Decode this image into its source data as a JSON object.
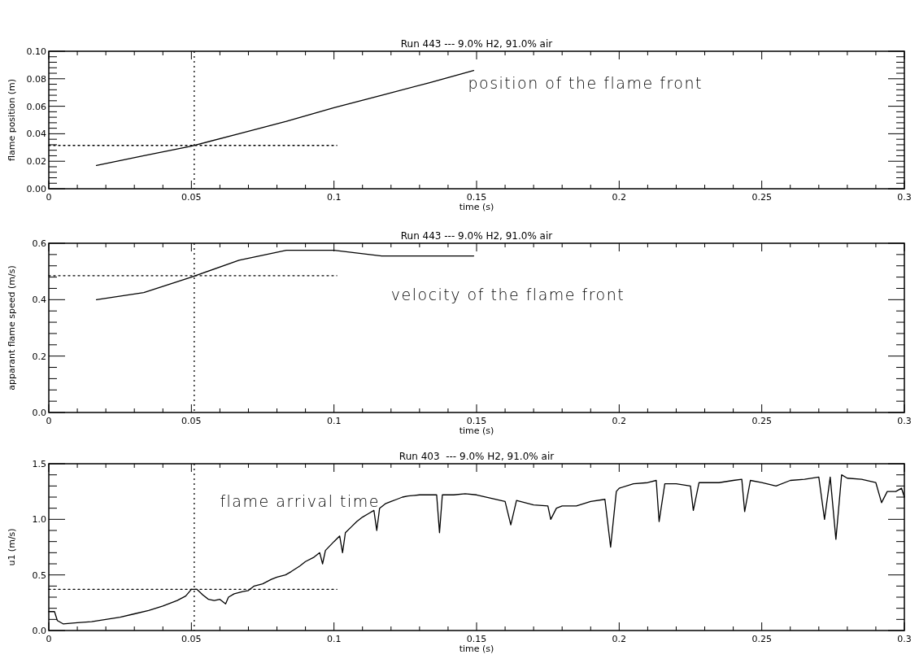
{
  "chart_data": [
    {
      "type": "line",
      "title": "Run 443 --- 9.0% H2, 91.0% air",
      "xlabel": "time (s)",
      "ylabel": "flame position (m)",
      "xlim": [
        0,
        0.3
      ],
      "xticks": [
        0,
        {
          "value": 0.01,
          "label": null
        },
        {
          "value": 0.02,
          "label": null
        },
        {
          "value": 0.03,
          "label": null
        },
        {
          "value": 0.04,
          "label": null
        },
        0.05,
        {
          "value": 0.06,
          "label": null
        },
        {
          "value": 0.07,
          "label": null
        },
        {
          "value": 0.08,
          "label": null
        },
        {
          "value": 0.09,
          "label": null
        },
        0.1,
        {
          "value": 0.11,
          "label": null
        },
        {
          "value": 0.12,
          "label": null
        },
        {
          "value": 0.13,
          "label": null
        },
        {
          "value": 0.14,
          "label": null
        },
        0.15,
        {
          "value": 0.16,
          "label": null
        },
        {
          "value": 0.17,
          "label": null
        },
        {
          "value": 0.18,
          "label": null
        },
        {
          "value": 0.19,
          "label": null
        },
        0.2,
        {
          "value": 0.21,
          "label": null
        },
        {
          "value": 0.22,
          "label": null
        },
        {
          "value": 0.23,
          "label": null
        },
        {
          "value": 0.24,
          "label": null
        },
        0.25,
        {
          "value": 0.26,
          "label": null
        },
        {
          "value": 0.27,
          "label": null
        },
        {
          "value": 0.28,
          "label": null
        },
        {
          "value": 0.29,
          "label": null
        },
        0.3
      ],
      "ylim": [
        0,
        0.1
      ],
      "yticks": [
        {
          "value": 0,
          "label": "0.00"
        },
        {
          "value": 0.004,
          "label": null
        },
        {
          "value": 0.008,
          "label": null
        },
        {
          "value": 0.012,
          "label": null
        },
        {
          "value": 0.016,
          "label": null
        },
        {
          "value": 0.02,
          "label": "0.02"
        },
        {
          "value": 0.024,
          "label": null
        },
        {
          "value": 0.028,
          "label": null
        },
        {
          "value": 0.032,
          "label": null
        },
        {
          "value": 0.036,
          "label": null
        },
        {
          "value": 0.04,
          "label": "0.04"
        },
        {
          "value": 0.044,
          "label": null
        },
        {
          "value": 0.048,
          "label": null
        },
        {
          "value": 0.052,
          "label": null
        },
        {
          "value": 0.056,
          "label": null
        },
        {
          "value": 0.06,
          "label": "0.06"
        },
        {
          "value": 0.064,
          "label": null
        },
        {
          "value": 0.068,
          "label": null
        },
        {
          "value": 0.072,
          "label": null
        },
        {
          "value": 0.076,
          "label": null
        },
        {
          "value": 0.08,
          "label": "0.08"
        },
        {
          "value": 0.084,
          "label": null
        },
        {
          "value": 0.088,
          "label": null
        },
        {
          "value": 0.092,
          "label": null
        },
        {
          "value": 0.096,
          "label": null
        },
        {
          "value": 0.1,
          "label": "0.10"
        }
      ],
      "grid": false,
      "marker": "none",
      "series": [
        {
          "color": "#000000",
          "line_style": "solid",
          "x": [
            0.0167,
            0.0333,
            0.05,
            0.0667,
            0.0833,
            0.1,
            0.1167,
            0.1333,
            0.149
          ],
          "values": [
            0.017,
            0.024,
            0.031,
            0.04,
            0.049,
            0.059,
            0.068,
            0.077,
            0.086
          ]
        },
        {
          "color": "#000000",
          "line_style": "dotted",
          "x": [
            0,
            0.101
          ],
          "values": [
            0.0315,
            0.0315
          ]
        }
      ],
      "ref_lines": [
        {
          "axis": "x",
          "value": 0.051,
          "line_style": "dotted",
          "color": "#000000"
        }
      ],
      "annotations": [
        "position of the flame front"
      ]
    },
    {
      "type": "line",
      "title": "Run 443 --- 9.0% H2, 91.0% air",
      "xlabel": "time (s)",
      "ylabel": "apparant flame speed (m/s)",
      "xlim": [
        0,
        0.3
      ],
      "xticks": [
        0,
        {
          "value": 0.01,
          "label": null
        },
        {
          "value": 0.02,
          "label": null
        },
        {
          "value": 0.03,
          "label": null
        },
        {
          "value": 0.04,
          "label": null
        },
        0.05,
        {
          "value": 0.06,
          "label": null
        },
        {
          "value": 0.07,
          "label": null
        },
        {
          "value": 0.08,
          "label": null
        },
        {
          "value": 0.09,
          "label": null
        },
        0.1,
        {
          "value": 0.11,
          "label": null
        },
        {
          "value": 0.12,
          "label": null
        },
        {
          "value": 0.13,
          "label": null
        },
        {
          "value": 0.14,
          "label": null
        },
        0.15,
        {
          "value": 0.16,
          "label": null
        },
        {
          "value": 0.17,
          "label": null
        },
        {
          "value": 0.18,
          "label": null
        },
        {
          "value": 0.19,
          "label": null
        },
        0.2,
        {
          "value": 0.21,
          "label": null
        },
        {
          "value": 0.22,
          "label": null
        },
        {
          "value": 0.23,
          "label": null
        },
        {
          "value": 0.24,
          "label": null
        },
        0.25,
        {
          "value": 0.26,
          "label": null
        },
        {
          "value": 0.27,
          "label": null
        },
        {
          "value": 0.28,
          "label": null
        },
        {
          "value": 0.29,
          "label": null
        },
        0.3
      ],
      "ylim": [
        0,
        0.6
      ],
      "yticks": [
        {
          "value": 0,
          "label": "0.0"
        },
        {
          "value": 0.04,
          "label": null
        },
        {
          "value": 0.08,
          "label": null
        },
        {
          "value": 0.12,
          "label": null
        },
        {
          "value": 0.16,
          "label": null
        },
        {
          "value": 0.2,
          "label": "0.2"
        },
        {
          "value": 0.24,
          "label": null
        },
        {
          "value": 0.28,
          "label": null
        },
        {
          "value": 0.32,
          "label": null
        },
        {
          "value": 0.36,
          "label": null
        },
        {
          "value": 0.4,
          "label": "0.4"
        },
        {
          "value": 0.44,
          "label": null
        },
        {
          "value": 0.48,
          "label": null
        },
        {
          "value": 0.52,
          "label": null
        },
        {
          "value": 0.56,
          "label": null
        },
        {
          "value": 0.6,
          "label": "0.6"
        }
      ],
      "grid": false,
      "marker": "none",
      "series": [
        {
          "color": "#000000",
          "line_style": "solid",
          "x": [
            0.0167,
            0.0333,
            0.05,
            0.0667,
            0.0833,
            0.1,
            0.1167,
            0.149
          ],
          "values": [
            0.4,
            0.425,
            0.48,
            0.54,
            0.575,
            0.575,
            0.555,
            0.555
          ]
        },
        {
          "color": "#000000",
          "line_style": "dotted",
          "x": [
            0,
            0.101
          ],
          "values": [
            0.485,
            0.485
          ]
        }
      ],
      "ref_lines": [
        {
          "axis": "x",
          "value": 0.051,
          "line_style": "dotted",
          "color": "#000000"
        }
      ],
      "annotations": [
        "velocity of the flame front"
      ]
    },
    {
      "type": "line",
      "title": "Run 403  --- 9.0% H2, 91.0% air",
      "xlabel": "time (s)",
      "ylabel": "u1 (m/s)",
      "xlim": [
        0,
        0.3
      ],
      "xticks": [
        0,
        {
          "value": 0.01,
          "label": null
        },
        {
          "value": 0.02,
          "label": null
        },
        {
          "value": 0.03,
          "label": null
        },
        {
          "value": 0.04,
          "label": null
        },
        0.05,
        {
          "value": 0.06,
          "label": null
        },
        {
          "value": 0.07,
          "label": null
        },
        {
          "value": 0.08,
          "label": null
        },
        {
          "value": 0.09,
          "label": null
        },
        0.1,
        {
          "value": 0.11,
          "label": null
        },
        {
          "value": 0.12,
          "label": null
        },
        {
          "value": 0.13,
          "label": null
        },
        {
          "value": 0.14,
          "label": null
        },
        0.15,
        {
          "value": 0.16,
          "label": null
        },
        {
          "value": 0.17,
          "label": null
        },
        {
          "value": 0.18,
          "label": null
        },
        {
          "value": 0.19,
          "label": null
        },
        0.2,
        {
          "value": 0.21,
          "label": null
        },
        {
          "value": 0.22,
          "label": null
        },
        {
          "value": 0.23,
          "label": null
        },
        {
          "value": 0.24,
          "label": null
        },
        0.25,
        {
          "value": 0.26,
          "label": null
        },
        {
          "value": 0.27,
          "label": null
        },
        {
          "value": 0.28,
          "label": null
        },
        {
          "value": 0.29,
          "label": null
        },
        0.3
      ],
      "ylim": [
        0,
        1.5
      ],
      "yticks": [
        {
          "value": 0,
          "label": "0.0"
        },
        {
          "value": 0.1,
          "label": null
        },
        {
          "value": 0.2,
          "label": null
        },
        {
          "value": 0.3,
          "label": null
        },
        {
          "value": 0.4,
          "label": null
        },
        {
          "value": 0.5,
          "label": "0.5"
        },
        {
          "value": 0.6,
          "label": null
        },
        {
          "value": 0.7,
          "label": null
        },
        {
          "value": 0.8,
          "label": null
        },
        {
          "value": 0.9,
          "label": null
        },
        {
          "value": 1,
          "label": "1.0"
        },
        {
          "value": 1.1,
          "label": null
        },
        {
          "value": 1.2,
          "label": null
        },
        {
          "value": 1.3,
          "label": null
        },
        {
          "value": 1.4,
          "label": null
        },
        {
          "value": 1.5,
          "label": "1.5"
        }
      ],
      "grid": false,
      "marker": "none",
      "series": [
        {
          "color": "#000000",
          "line_style": "solid",
          "x": [
            0,
            0.002,
            0.003,
            0.005,
            0.01,
            0.015,
            0.02,
            0.025,
            0.03,
            0.035,
            0.04,
            0.045,
            0.048,
            0.05,
            0.052,
            0.054,
            0.056,
            0.058,
            0.06,
            0.062,
            0.063,
            0.065,
            0.068,
            0.07,
            0.072,
            0.075,
            0.078,
            0.08,
            0.083,
            0.085,
            0.088,
            0.09,
            0.093,
            0.095,
            0.096,
            0.097,
            0.1,
            0.102,
            0.103,
            0.104,
            0.106,
            0.108,
            0.11,
            0.112,
            0.114,
            0.115,
            0.116,
            0.118,
            0.12,
            0.122,
            0.124,
            0.126,
            0.13,
            0.134,
            0.136,
            0.137,
            0.138,
            0.142,
            0.146,
            0.15,
            0.155,
            0.16,
            0.162,
            0.164,
            0.17,
            0.175,
            0.176,
            0.178,
            0.18,
            0.185,
            0.19,
            0.195,
            0.197,
            0.199,
            0.2,
            0.205,
            0.21,
            0.213,
            0.214,
            0.216,
            0.22,
            0.225,
            0.226,
            0.228,
            0.235,
            0.24,
            0.243,
            0.244,
            0.246,
            0.25,
            0.255,
            0.26,
            0.265,
            0.27,
            0.272,
            0.274,
            0.276,
            0.278,
            0.28,
            0.285,
            0.29,
            0.292,
            0.294,
            0.297,
            0.299,
            0.3
          ],
          "values": [
            0.17,
            0.17,
            0.09,
            0.06,
            0.07,
            0.08,
            0.1,
            0.12,
            0.15,
            0.18,
            0.22,
            0.27,
            0.31,
            0.37,
            0.37,
            0.32,
            0.28,
            0.27,
            0.28,
            0.24,
            0.3,
            0.33,
            0.35,
            0.36,
            0.4,
            0.42,
            0.46,
            0.48,
            0.5,
            0.53,
            0.58,
            0.62,
            0.66,
            0.7,
            0.6,
            0.72,
            0.8,
            0.85,
            0.7,
            0.88,
            0.93,
            0.98,
            1.02,
            1.05,
            1.08,
            0.9,
            1.1,
            1.14,
            1.16,
            1.18,
            1.2,
            1.21,
            1.22,
            1.22,
            1.22,
            0.88,
            1.22,
            1.22,
            1.23,
            1.22,
            1.19,
            1.16,
            0.95,
            1.17,
            1.13,
            1.12,
            1.0,
            1.1,
            1.12,
            1.12,
            1.16,
            1.18,
            0.75,
            1.25,
            1.28,
            1.32,
            1.33,
            1.35,
            0.98,
            1.32,
            1.32,
            1.3,
            1.08,
            1.33,
            1.33,
            1.35,
            1.36,
            1.07,
            1.35,
            1.33,
            1.3,
            1.35,
            1.36,
            1.38,
            1.0,
            1.38,
            0.82,
            1.4,
            1.37,
            1.36,
            1.33,
            1.15,
            1.25,
            1.25,
            1.28,
            1.2
          ]
        },
        {
          "color": "#000000",
          "line_style": "dotted",
          "x": [
            0,
            0.101
          ],
          "values": [
            0.37,
            0.37
          ]
        }
      ],
      "ref_lines": [
        {
          "axis": "x",
          "value": 0.051,
          "line_style": "dotted",
          "color": "#000000"
        }
      ],
      "annotations": [
        "flame arrival time"
      ]
    }
  ]
}
